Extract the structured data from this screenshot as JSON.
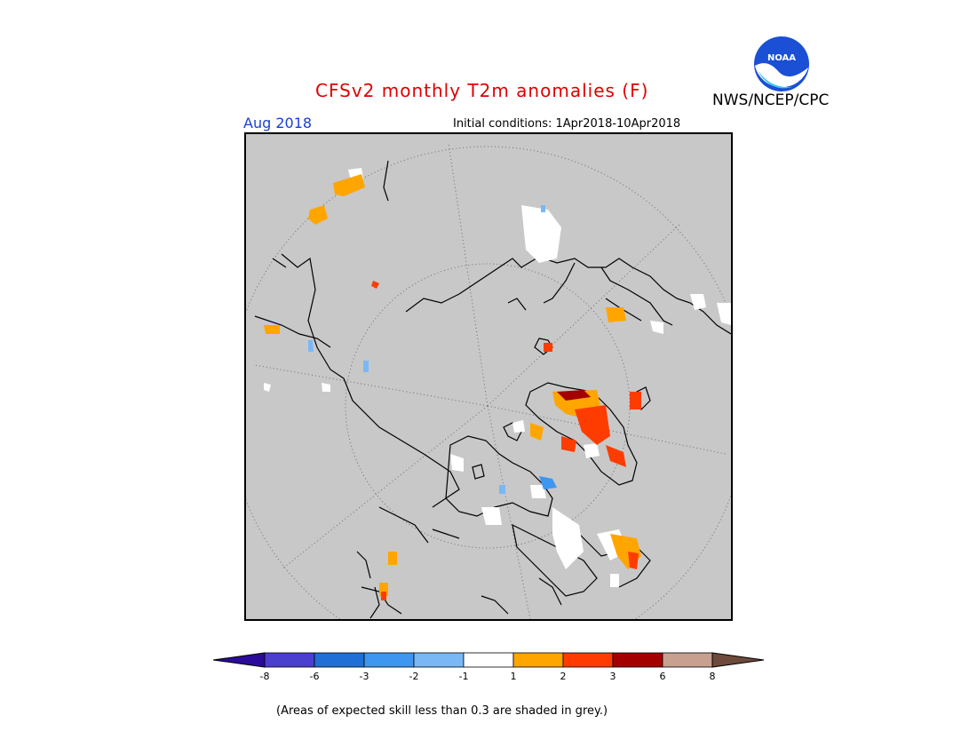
{
  "header": {
    "title": "CFSv2 monthly T2m anomalies (F)",
    "month": "Aug 2018",
    "initial_conditions": "Initial conditions: 1Apr2018-10Apr2018",
    "agency": "NWS/NCEP/CPC",
    "logo_text": "NOAA"
  },
  "legend": {
    "tick_labels": [
      "-8",
      "-6",
      "-3",
      "-2",
      "-1",
      "1",
      "2",
      "3",
      "6",
      "8"
    ],
    "colors": [
      "#2b0b9b",
      "#4a3fcf",
      "#1f6fd6",
      "#3d96f0",
      "#7ab8f5",
      "#ffffff",
      "#ffa500",
      "#ff3c00",
      "#a50000",
      "#c8a090",
      "#6e4a3c"
    ]
  },
  "colors": {
    "skill_grey": "#c8c8c8",
    "warm_1": "#ffa500",
    "warm_2": "#ff3c00",
    "warm_3": "#a50000",
    "cool_1": "#7ab8f5",
    "cool_2": "#3d96f0",
    "neutral": "#ffffff"
  },
  "footnote": "(Areas of expected skill less than 0.3 are shaded in grey.)"
}
